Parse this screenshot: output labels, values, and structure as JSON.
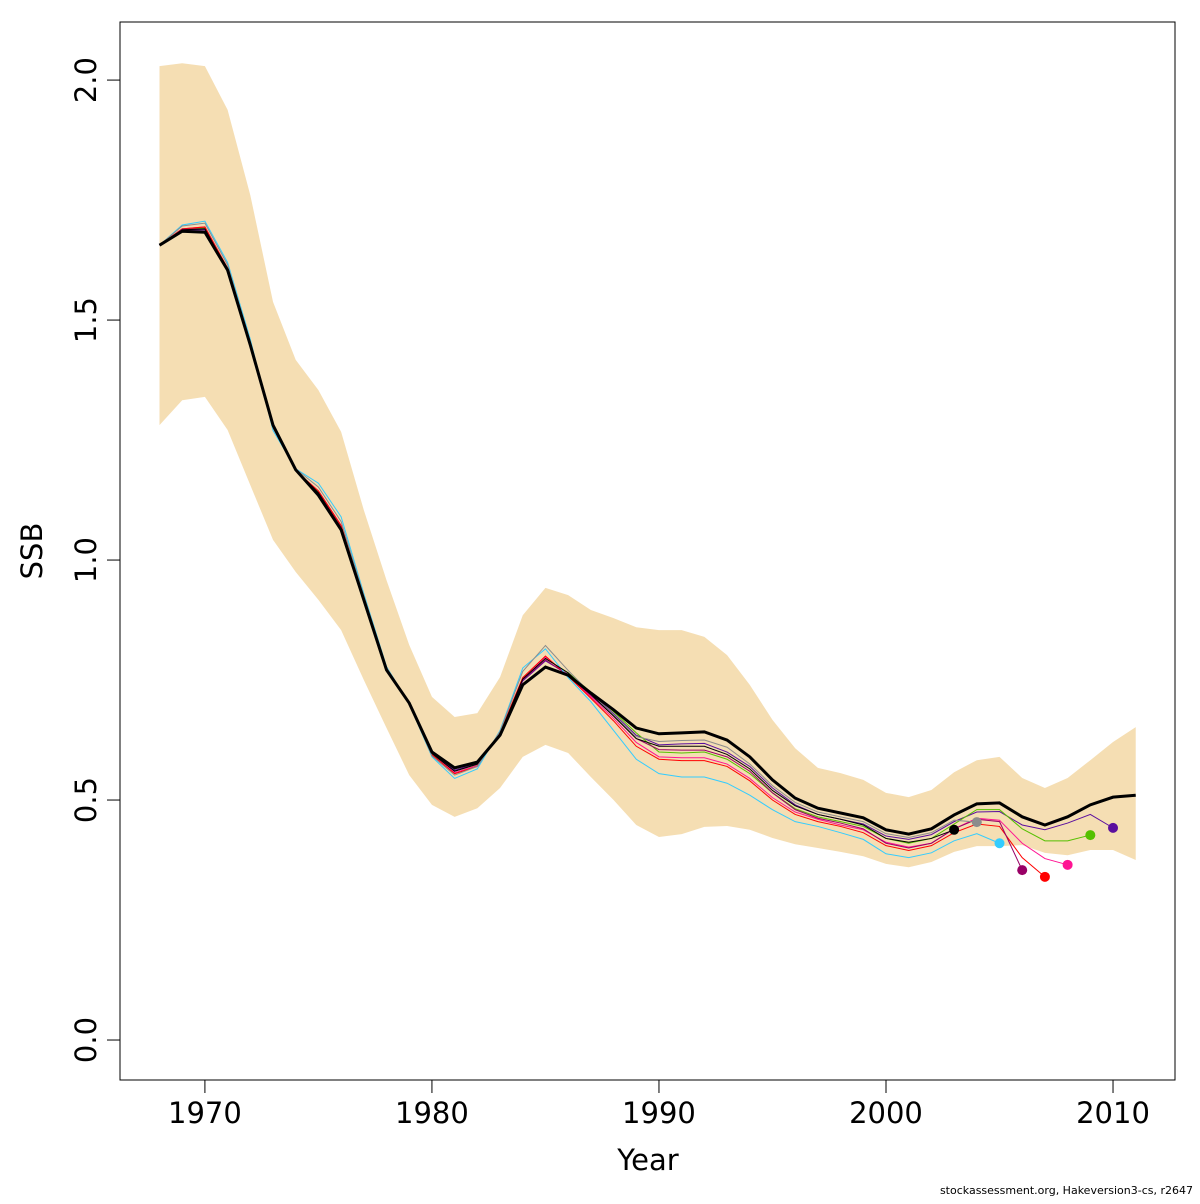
{
  "chart_data": {
    "type": "line",
    "xlabel": "Year",
    "ylabel": "SSB",
    "footnote": "stockassessment.org, Hakeversion3-cs, r2647",
    "x": [
      1968,
      1969,
      1970,
      1971,
      1972,
      1973,
      1974,
      1975,
      1976,
      1977,
      1978,
      1979,
      1980,
      1981,
      1982,
      1983,
      1984,
      1985,
      1986,
      1987,
      1988,
      1989,
      1990,
      1991,
      1992,
      1993,
      1994,
      1995,
      1996,
      1997,
      1998,
      1999,
      2000,
      2001,
      2002,
      2003,
      2004,
      2005,
      2006,
      2007,
      2008,
      2009,
      2010,
      2011
    ],
    "xlim": [
      1966.26,
      2012.73
    ],
    "xticks": [
      1970,
      1980,
      1990,
      2000,
      2010
    ],
    "ylim": [
      -0.0833,
      2.121
    ],
    "yticks": [
      {
        "value": 0,
        "label": "0.0"
      },
      0.5,
      {
        "value": 1,
        "label": "1.0"
      },
      1.5,
      {
        "value": 2,
        "label": "2.0"
      }
    ],
    "band": {
      "color": "#f5deb3",
      "upper": [
        2.029,
        2.035,
        2.029,
        1.938,
        1.76,
        1.538,
        1.417,
        1.354,
        1.267,
        1.104,
        0.958,
        0.823,
        0.715,
        0.673,
        0.681,
        0.756,
        0.885,
        0.942,
        0.927,
        0.896,
        0.879,
        0.86,
        0.854,
        0.854,
        0.84,
        0.802,
        0.74,
        0.667,
        0.608,
        0.567,
        0.556,
        0.542,
        0.515,
        0.506,
        0.521,
        0.558,
        0.583,
        0.59,
        0.546,
        0.525,
        0.546,
        0.583,
        0.621,
        0.652
      ],
      "lower": [
        1.281,
        1.333,
        1.34,
        1.271,
        1.156,
        1.042,
        0.975,
        0.917,
        0.854,
        0.75,
        0.65,
        0.552,
        0.49,
        0.465,
        0.483,
        0.525,
        0.59,
        0.615,
        0.598,
        0.548,
        0.5,
        0.448,
        0.423,
        0.429,
        0.444,
        0.446,
        0.438,
        0.421,
        0.408,
        0.4,
        0.392,
        0.383,
        0.367,
        0.36,
        0.371,
        0.392,
        0.404,
        0.404,
        0.406,
        0.39,
        0.385,
        0.396,
        0.396,
        0.375
      ]
    },
    "series": [
      {
        "color": "#5b0f9e",
        "values": [
          1.656,
          1.688,
          1.688,
          1.602,
          1.446,
          1.28,
          1.188,
          1.14,
          1.068,
          0.92,
          0.773,
          0.702,
          0.598,
          0.562,
          0.576,
          0.638,
          0.748,
          0.79,
          0.762,
          0.722,
          0.68,
          0.635,
          0.615,
          0.617,
          0.618,
          0.6,
          0.57,
          0.525,
          0.49,
          0.47,
          0.46,
          0.45,
          0.425,
          0.418,
          0.428,
          0.455,
          0.475,
          0.476,
          0.448,
          0.438,
          0.452,
          0.47,
          0.442,
          null
        ]
      },
      {
        "color": "#55c000",
        "values": [
          1.656,
          1.69,
          1.692,
          1.605,
          1.448,
          1.28,
          1.188,
          1.142,
          1.07,
          0.922,
          0.774,
          0.702,
          0.596,
          0.56,
          0.574,
          0.64,
          0.752,
          0.795,
          0.765,
          0.725,
          0.684,
          0.64,
          0.6,
          0.598,
          0.6,
          0.585,
          0.555,
          0.515,
          0.482,
          0.465,
          0.455,
          0.445,
          0.42,
          0.41,
          0.42,
          0.45,
          0.48,
          0.48,
          0.44,
          0.415,
          0.415,
          0.427,
          null,
          null
        ]
      },
      {
        "color": "#ff1493",
        "values": [
          1.656,
          1.69,
          1.694,
          1.608,
          1.45,
          1.276,
          1.186,
          1.144,
          1.072,
          0.924,
          0.775,
          0.702,
          0.594,
          0.557,
          0.572,
          0.64,
          0.755,
          0.798,
          0.76,
          0.715,
          0.67,
          0.62,
          0.59,
          0.588,
          0.588,
          0.575,
          0.545,
          0.505,
          0.475,
          0.46,
          0.448,
          0.438,
          0.412,
          0.402,
          0.41,
          0.44,
          0.462,
          0.458,
          0.41,
          0.378,
          0.365,
          null,
          null,
          null
        ]
      },
      {
        "color": "#ff0000",
        "values": [
          1.656,
          1.69,
          1.694,
          1.608,
          1.45,
          1.276,
          1.186,
          1.144,
          1.072,
          0.924,
          0.775,
          0.702,
          0.594,
          0.555,
          0.57,
          0.64,
          0.755,
          0.8,
          0.758,
          0.712,
          0.665,
          0.612,
          0.585,
          0.582,
          0.582,
          0.57,
          0.54,
          0.5,
          0.47,
          0.455,
          0.445,
          0.432,
          0.405,
          0.395,
          0.405,
          0.432,
          0.45,
          0.445,
          0.38,
          0.34,
          null,
          null,
          null,
          null
        ]
      },
      {
        "color": "#990066",
        "values": [
          1.656,
          1.689,
          1.69,
          1.605,
          1.448,
          1.28,
          1.188,
          1.14,
          1.068,
          0.92,
          0.773,
          0.702,
          0.597,
          0.56,
          0.575,
          0.638,
          0.75,
          0.792,
          0.76,
          0.718,
          0.675,
          0.628,
          0.605,
          0.604,
          0.604,
          0.59,
          0.56,
          0.515,
          0.48,
          0.462,
          0.452,
          0.44,
          0.41,
          0.4,
          0.41,
          0.44,
          0.46,
          0.455,
          0.354,
          null,
          null,
          null,
          null,
          null
        ]
      },
      {
        "color": "#33ccff",
        "values": [
          1.656,
          1.698,
          1.706,
          1.62,
          1.46,
          1.27,
          1.19,
          1.16,
          1.09,
          0.93,
          0.778,
          0.7,
          0.59,
          0.545,
          0.565,
          0.645,
          0.775,
          0.815,
          0.755,
          0.705,
          0.645,
          0.585,
          0.555,
          0.548,
          0.548,
          0.535,
          0.51,
          0.48,
          0.455,
          0.445,
          0.432,
          0.418,
          0.388,
          0.38,
          0.39,
          0.415,
          0.43,
          0.41,
          null,
          null,
          null,
          null,
          null,
          null
        ]
      },
      {
        "color": "#8c8c8c",
        "values": [
          1.656,
          1.696,
          1.702,
          1.615,
          1.455,
          1.275,
          1.19,
          1.152,
          1.08,
          0.926,
          0.776,
          0.701,
          0.592,
          0.552,
          0.57,
          0.643,
          0.768,
          0.822,
          0.77,
          0.722,
          0.678,
          0.632,
          0.622,
          0.624,
          0.625,
          0.61,
          0.575,
          0.53,
          0.495,
          0.475,
          0.465,
          0.455,
          0.43,
          0.422,
          0.432,
          0.458,
          0.454,
          null,
          null,
          null,
          null,
          null,
          null,
          null
        ]
      },
      {
        "color": "#000000",
        "values": [
          1.656,
          1.688,
          1.69,
          1.604,
          1.448,
          1.28,
          1.188,
          1.14,
          1.066,
          0.92,
          0.773,
          0.702,
          0.597,
          0.56,
          0.575,
          0.638,
          0.752,
          0.795,
          0.765,
          0.72,
          0.675,
          0.628,
          0.612,
          0.612,
          0.612,
          0.595,
          0.565,
          0.52,
          0.488,
          0.47,
          0.46,
          0.448,
          0.42,
          0.412,
          0.42,
          0.438,
          null,
          null,
          null,
          null,
          null,
          null,
          null,
          null
        ]
      },
      {
        "color": "#000000",
        "values": [
          1.656,
          1.685,
          1.683,
          1.604,
          1.448,
          1.281,
          1.188,
          1.135,
          1.063,
          0.917,
          0.771,
          0.702,
          0.6,
          0.567,
          0.579,
          0.635,
          0.74,
          0.777,
          0.76,
          0.723,
          0.688,
          0.65,
          0.638,
          0.64,
          0.642,
          0.625,
          0.59,
          0.542,
          0.504,
          0.483,
          0.473,
          0.463,
          0.438,
          0.429,
          0.44,
          0.469,
          0.492,
          0.494,
          0.465,
          0.448,
          0.465,
          0.49,
          0.506,
          0.51
        ]
      }
    ]
  }
}
